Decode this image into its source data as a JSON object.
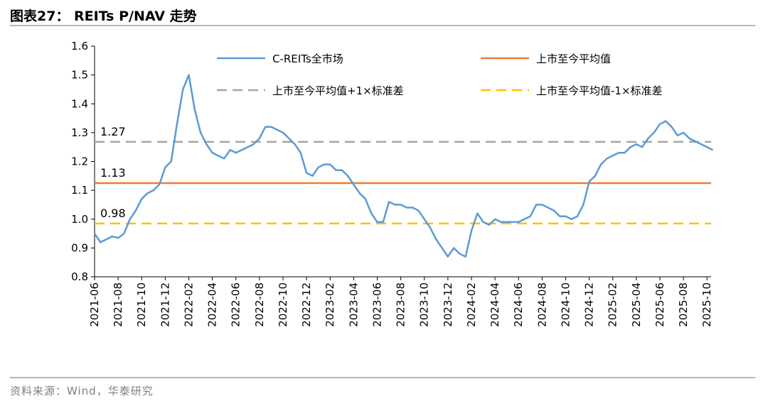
{
  "header": {
    "title": "图表27： REITs P/NAV 走势"
  },
  "footer": {
    "source": "资料来源：Wind，华泰研究"
  },
  "colors": {
    "series": "#5b9bd5",
    "mean": "#ed7d31",
    "upper": "#a5a5a5",
    "lower": "#ffc000",
    "axis": "#000000",
    "rule": "#a9b7cc"
  },
  "chart_data": {
    "type": "line",
    "title": "REITs P/NAV 走势",
    "xlabel": "",
    "ylabel": "",
    "ylim": [
      0.8,
      1.6
    ],
    "yticks": [
      "0.8",
      "0.9",
      "1.0",
      "1.1",
      "1.2",
      "1.3",
      "1.4",
      "1.5",
      "1.6"
    ],
    "xticks": [
      "2021-06",
      "2021-08",
      "2021-10",
      "2021-12",
      "2022-02",
      "2022-04",
      "2022-06",
      "2022-08",
      "2022-10",
      "2022-12",
      "2023-02",
      "2023-04",
      "2023-06",
      "2023-08",
      "2023-10",
      "2023-12",
      "2024-02",
      "2024-04",
      "2024-06",
      "2024-08",
      "2024-10",
      "2024-12",
      "2025-02",
      "2025-04",
      "2025-06",
      "2025-08",
      "2025-10"
    ],
    "x": [
      "2021-06",
      "2021-06",
      "2021-07",
      "2021-07",
      "2021-08",
      "2021-08",
      "2021-09",
      "2021-09",
      "2021-10",
      "2021-10",
      "2021-11",
      "2021-11",
      "2021-12",
      "2021-12",
      "2022-01",
      "2022-01",
      "2022-02",
      "2022-02",
      "2022-03",
      "2022-03",
      "2022-04",
      "2022-04",
      "2022-05",
      "2022-05",
      "2022-06",
      "2022-06",
      "2022-07",
      "2022-07",
      "2022-08",
      "2022-08",
      "2022-09",
      "2022-09",
      "2022-10",
      "2022-10",
      "2022-11",
      "2022-11",
      "2022-12",
      "2022-12",
      "2023-01",
      "2023-01",
      "2023-02",
      "2023-02",
      "2023-03",
      "2023-03",
      "2023-04",
      "2023-04",
      "2023-05",
      "2023-05",
      "2023-06",
      "2023-06",
      "2023-07",
      "2023-07",
      "2023-08",
      "2023-08",
      "2023-09",
      "2023-09",
      "2023-10",
      "2023-10",
      "2023-11",
      "2023-11",
      "2023-12",
      "2023-12",
      "2024-01",
      "2024-01",
      "2024-02",
      "2024-02",
      "2024-03",
      "2024-03",
      "2024-04",
      "2024-04",
      "2024-05",
      "2024-05",
      "2024-06",
      "2024-06",
      "2024-07",
      "2024-07",
      "2024-08",
      "2024-08",
      "2024-09",
      "2024-09",
      "2024-10",
      "2024-10",
      "2024-11",
      "2024-11",
      "2024-12",
      "2024-12",
      "2025-01",
      "2025-01",
      "2025-02",
      "2025-02",
      "2025-03",
      "2025-03",
      "2025-04",
      "2025-04",
      "2025-05",
      "2025-05",
      "2025-06",
      "2025-06",
      "2025-07",
      "2025-07",
      "2025-08",
      "2025-08",
      "2025-09",
      "2025-09",
      "2025-10",
      "2025-10"
    ],
    "series": [
      {
        "name": "C-REITs全市场",
        "values": [
          0.95,
          0.92,
          0.93,
          0.94,
          0.935,
          0.95,
          1.0,
          1.03,
          1.07,
          1.09,
          1.1,
          1.12,
          1.18,
          1.2,
          1.33,
          1.45,
          1.5,
          1.38,
          1.3,
          1.26,
          1.23,
          1.22,
          1.21,
          1.24,
          1.23,
          1.24,
          1.25,
          1.26,
          1.28,
          1.32,
          1.32,
          1.31,
          1.3,
          1.28,
          1.26,
          1.23,
          1.16,
          1.15,
          1.18,
          1.19,
          1.19,
          1.17,
          1.17,
          1.15,
          1.12,
          1.09,
          1.07,
          1.02,
          0.99,
          0.99,
          1.06,
          1.05,
          1.05,
          1.04,
          1.04,
          1.03,
          1.0,
          0.97,
          0.93,
          0.9,
          0.87,
          0.9,
          0.88,
          0.87,
          0.96,
          1.02,
          0.99,
          0.98,
          1.0,
          0.99,
          0.99,
          0.99,
          0.99,
          1.0,
          1.01,
          1.05,
          1.05,
          1.04,
          1.03,
          1.01,
          1.01,
          1.0,
          1.01,
          1.05,
          1.13,
          1.15,
          1.19,
          1.21,
          1.22,
          1.23,
          1.23,
          1.25,
          1.26,
          1.25,
          1.28,
          1.3,
          1.33,
          1.34,
          1.32,
          1.29,
          1.3,
          1.28,
          1.27,
          1.26,
          1.25,
          1.24
        ]
      }
    ],
    "reference_lines": [
      {
        "name": "上市至今平均值",
        "value": 1.125,
        "label": "1.13"
      },
      {
        "name": "上市至今平均值+1×标准差",
        "value": 1.268,
        "label": "1.27"
      },
      {
        "name": "上市至今平均值-1×标准差",
        "value": 0.985,
        "label": "0.98"
      }
    ],
    "legend_position": "top",
    "grid": false
  }
}
